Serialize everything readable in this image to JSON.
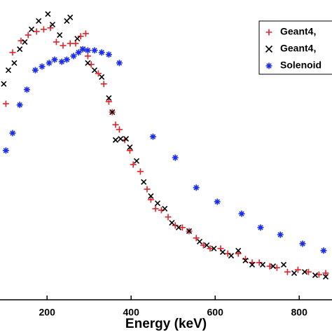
{
  "chart_data": {
    "type": "scatter",
    "xlabel": "Energy (keV)",
    "xlim": [
      88,
      878
    ],
    "ylim": [
      0,
      100
    ],
    "xticks": [
      200,
      400,
      600,
      800
    ],
    "legend": "upper right",
    "series": [
      {
        "name": "Geant4,",
        "color": "#e8202a",
        "marker": "+",
        "x": [
          102,
          118,
          138,
          155,
          175,
          192,
          208,
          222,
          238,
          255,
          268,
          280,
          292,
          297,
          305,
          322,
          335,
          347,
          355,
          363,
          372,
          385,
          397,
          405,
          422,
          438,
          447,
          458,
          472,
          488,
          505,
          522,
          538,
          555,
          572,
          588,
          613,
          630,
          655,
          672,
          688,
          705,
          730,
          747,
          772,
          797,
          822,
          847,
          863
        ],
        "values": [
          65.4,
          82.5,
          86.4,
          88.3,
          89.5,
          90.2,
          90.7,
          86.0,
          84.8,
          85.5,
          85.5,
          87.9,
          88.8,
          81.3,
          78.5,
          75.5,
          72.0,
          66.1,
          62.6,
          58.4,
          56.8,
          53.3,
          49.8,
          45.1,
          42.8,
          36.9,
          33.4,
          30.4,
          29.9,
          27.6,
          24.8,
          24.1,
          22.9,
          20.6,
          18.2,
          17.1,
          17.1,
          15.4,
          15.4,
          13.6,
          12.4,
          12.4,
          11.2,
          10.7,
          9.3,
          10.0,
          9.3,
          8.4,
          8.9
        ]
      },
      {
        "name": "Geant4,",
        "color": "#000000",
        "marker": "x",
        "x": [
          97,
          108,
          122,
          135,
          147,
          163,
          180,
          202,
          213,
          230,
          247,
          255,
          272,
          285,
          297,
          313,
          330,
          347,
          355,
          363,
          375,
          388,
          397,
          413,
          430,
          447,
          463,
          480,
          497,
          513,
          538,
          563,
          580,
          597,
          618,
          638,
          655,
          672,
          688,
          713,
          738,
          763,
          788,
          813,
          838,
          863
        ],
        "values": [
          72.0,
          76.6,
          79.0,
          83.6,
          86.0,
          90.2,
          93.0,
          95.3,
          91.8,
          88.3,
          93.0,
          94.2,
          87.1,
          83.6,
          79.0,
          76.6,
          74.3,
          67.3,
          62.6,
          53.3,
          53.7,
          53.7,
          50.9,
          46.3,
          39.3,
          34.6,
          32.2,
          30.4,
          25.7,
          24.1,
          22.9,
          19.4,
          18.2,
          17.1,
          15.9,
          14.7,
          16.4,
          13.1,
          11.7,
          11.7,
          11.2,
          11.7,
          8.9,
          9.3,
          8.2,
          7.7
        ]
      },
      {
        "name": "Solenoid",
        "color": "#1a2cf0",
        "marker": "*",
        "x": [
          102,
          118,
          135,
          152,
          172,
          188,
          205,
          218,
          235,
          247,
          263,
          275,
          285,
          297,
          313,
          330,
          347,
          372,
          452,
          505,
          555,
          605,
          663,
          708,
          755,
          808,
          858
        ],
        "values": [
          49.8,
          55.6,
          65.0,
          70.1,
          76.6,
          77.8,
          79.0,
          80.1,
          79.4,
          80.1,
          81.3,
          82.5,
          83.6,
          83.2,
          83.2,
          82.5,
          81.8,
          79.0,
          54.4,
          47.4,
          37.4,
          32.7,
          28.7,
          24.1,
          21.7,
          18.7,
          16.4
        ]
      }
    ]
  }
}
